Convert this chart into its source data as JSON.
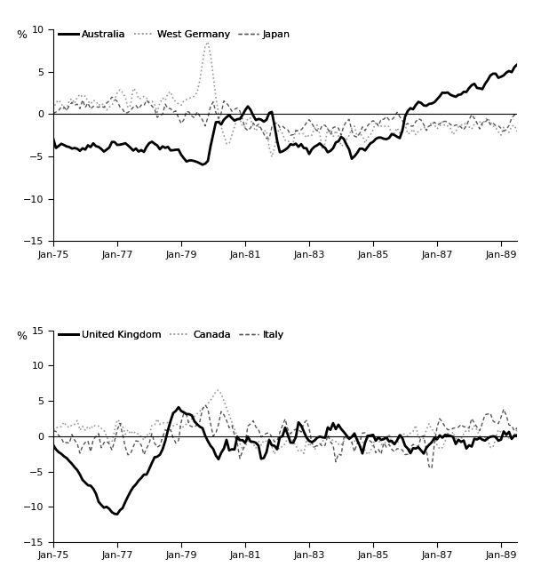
{
  "panel1": {
    "legend_labels": [
      "Australia",
      "West Germany",
      "Japan"
    ],
    "ylabel": "%",
    "ylim": [
      -15,
      10
    ],
    "yticks": [
      -15,
      -10,
      -5,
      0,
      5,
      10
    ],
    "xtick_labels": [
      "Jan-75",
      "Jan-77",
      "Jan-79",
      "Jan-81",
      "Jan-83",
      "Jan-85",
      "Jan-87",
      "Jan-89"
    ]
  },
  "panel2": {
    "legend_labels": [
      "United Kingdom",
      "Canada",
      "Italy"
    ],
    "ylabel": "%",
    "ylim": [
      -15,
      15
    ],
    "yticks": [
      -15,
      -10,
      -5,
      0,
      5,
      10,
      15
    ],
    "xtick_labels": [
      "Jan-75",
      "Jan-77",
      "Jan-79",
      "Jan-81",
      "Jan-83",
      "Jan-85",
      "Jan-87",
      "Jan-89"
    ]
  },
  "background_color": "#ffffff"
}
